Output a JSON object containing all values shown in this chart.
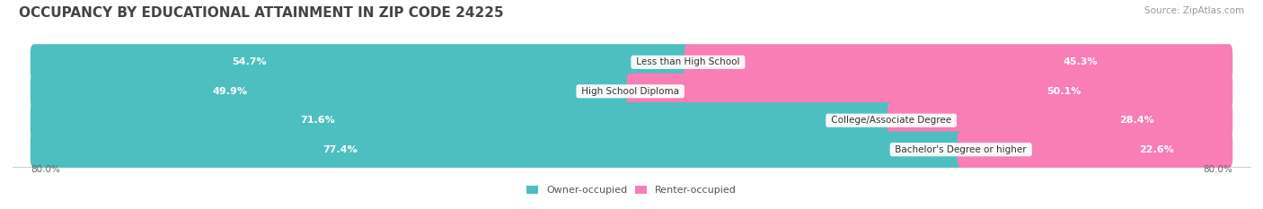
{
  "title": "OCCUPANCY BY EDUCATIONAL ATTAINMENT IN ZIP CODE 24225",
  "source": "Source: ZipAtlas.com",
  "categories": [
    "Less than High School",
    "High School Diploma",
    "College/Associate Degree",
    "Bachelor's Degree or higher"
  ],
  "owner_values": [
    54.7,
    49.9,
    71.6,
    77.4
  ],
  "renter_values": [
    45.3,
    50.1,
    28.4,
    22.6
  ],
  "owner_color": "#4DBFC0",
  "renter_color": "#F87EB5",
  "renter_color_light": "#FAC8DC",
  "bg_bar_color": "#F2F2F2",
  "background_color": "#FFFFFF",
  "axis_label_left": "80.0%",
  "axis_label_right": "80.0%",
  "title_fontsize": 11,
  "source_fontsize": 7.5,
  "bar_label_fontsize": 8,
  "category_fontsize": 7.5,
  "legend_fontsize": 8,
  "bar_height": 0.62,
  "x_min": 0.0,
  "x_max": 100.0
}
